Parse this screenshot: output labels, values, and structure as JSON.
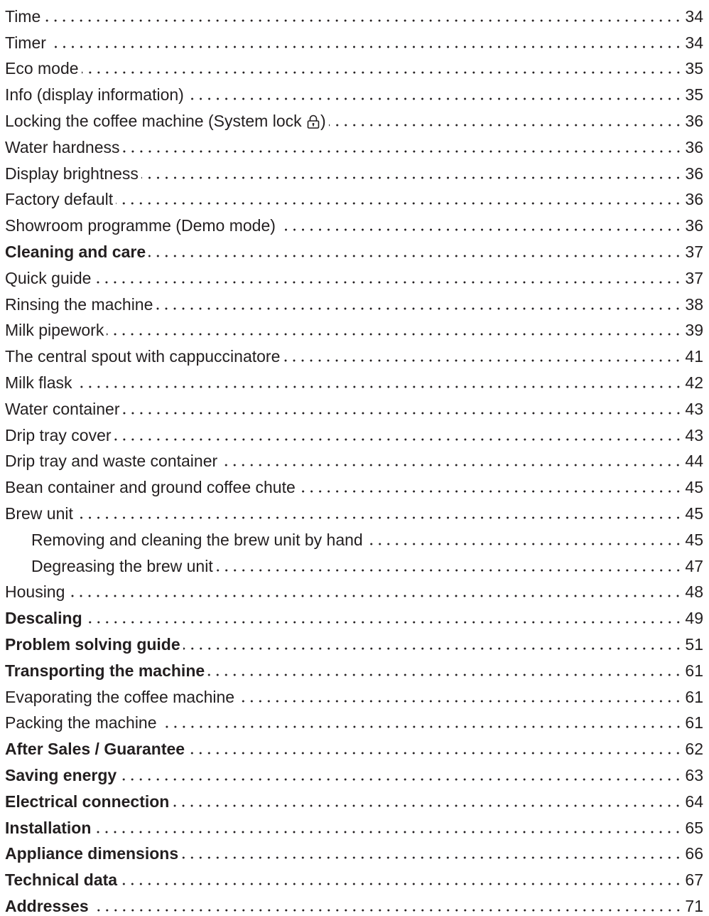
{
  "toc": [
    {
      "label": "Time",
      "page": "34",
      "level": "item"
    },
    {
      "label": "Timer",
      "page": "34",
      "level": "item"
    },
    {
      "label": "Eco mode",
      "page": "35",
      "level": "item"
    },
    {
      "label": "Info (display information)",
      "page": "35",
      "level": "item"
    },
    {
      "label_before": "Locking the coffee machine (System lock ",
      "label_after": ")",
      "icon": "padlock-icon",
      "page": "36",
      "level": "item"
    },
    {
      "label": "Water hardness",
      "page": "36",
      "level": "item"
    },
    {
      "label": "Display brightness",
      "page": "36",
      "level": "item"
    },
    {
      "label": "Factory default",
      "page": "36",
      "level": "item"
    },
    {
      "label": "Showroom programme (Demo mode)",
      "page": "36",
      "level": "item"
    },
    {
      "label": "Cleaning and care",
      "page": "37",
      "level": "heading"
    },
    {
      "label": "Quick guide",
      "page": "37",
      "level": "item"
    },
    {
      "label": "Rinsing the machine",
      "page": "38",
      "level": "item"
    },
    {
      "label": "Milk pipework",
      "page": "39",
      "level": "item"
    },
    {
      "label": "The central spout with cappuccinatore",
      "page": "41",
      "level": "item"
    },
    {
      "label": "Milk flask",
      "page": "42",
      "level": "item"
    },
    {
      "label": "Water container",
      "page": "43",
      "level": "item"
    },
    {
      "label": "Drip tray cover",
      "page": "43",
      "level": "item"
    },
    {
      "label": "Drip tray and waste container",
      "page": "44",
      "level": "item"
    },
    {
      "label": "Bean container and ground coffee chute",
      "page": "45",
      "level": "item"
    },
    {
      "label": "Brew unit",
      "page": "45",
      "level": "item"
    },
    {
      "label": "Removing and cleaning the brew unit by hand",
      "page": "45",
      "level": "sub"
    },
    {
      "label": "Degreasing the brew unit",
      "page": "47",
      "level": "sub"
    },
    {
      "label": "Housing",
      "page": "48",
      "level": "item"
    },
    {
      "label": "Descaling",
      "page": "49",
      "level": "heading"
    },
    {
      "label": "Problem solving guide",
      "page": "51",
      "level": "heading"
    },
    {
      "label": "Transporting the machine",
      "page": "61",
      "level": "heading"
    },
    {
      "label": "Evaporating the coffee machine",
      "page": "61",
      "level": "item"
    },
    {
      "label": "Packing the machine",
      "page": "61",
      "level": "item"
    },
    {
      "label": "After Sales / Guarantee",
      "page": "62",
      "level": "heading"
    },
    {
      "label": "Saving energy",
      "page": "63",
      "level": "heading"
    },
    {
      "label": "Electrical connection",
      "page": "64",
      "level": "heading"
    },
    {
      "label": "Installation",
      "page": "65",
      "level": "heading"
    },
    {
      "label": "Appliance dimensions",
      "page": "66",
      "level": "heading"
    },
    {
      "label": "Technical data",
      "page": "67",
      "level": "heading"
    },
    {
      "label": "Addresses",
      "page": "71",
      "level": "heading"
    }
  ],
  "colors": {
    "text": "#231f20",
    "background": "#ffffff"
  }
}
